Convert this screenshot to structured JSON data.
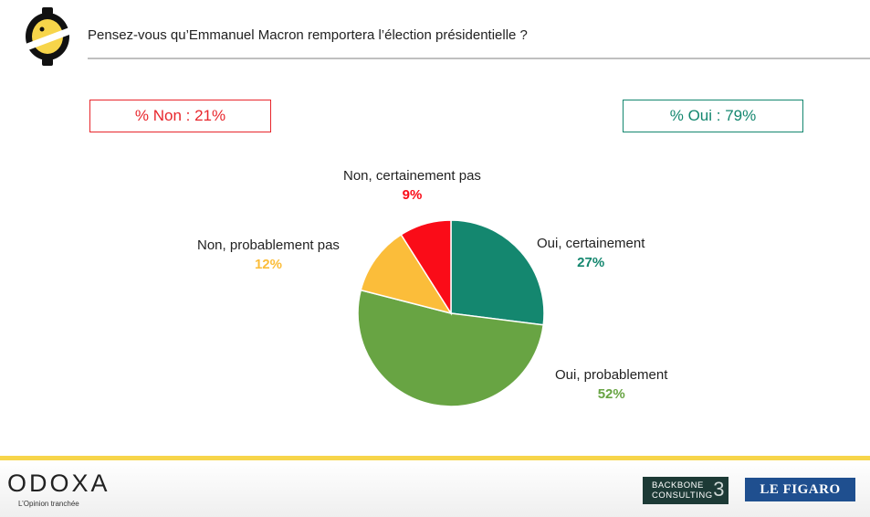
{
  "header": {
    "question": "Pensez-vous qu’Emmanuel Macron remportera l’élection présidentielle ?"
  },
  "totals": {
    "non": "% Non : 21%",
    "oui": "% Oui : 79%"
  },
  "chart_data": {
    "type": "pie",
    "title": "",
    "slices": [
      {
        "label": "Oui, certainement",
        "value": 27,
        "display": "27%",
        "color": "#14876f"
      },
      {
        "label": "Oui, probablement",
        "value": 52,
        "display": "52%",
        "color": "#68a443"
      },
      {
        "label": "Non, probablement pas",
        "value": 12,
        "display": "12%",
        "color": "#fbbd3a"
      },
      {
        "label": "Non, certainement pas",
        "value": 9,
        "display": "9%",
        "color": "#fa0c18"
      }
    ]
  },
  "footer": {
    "brand": "ODOXA",
    "tagline": "L’Opinion tranchée",
    "partner1_line1": "BACKBONE",
    "partner1_line2": "CONSULTING",
    "partner1_mark": "3",
    "partner2": "LE FIGARO"
  },
  "colors": {
    "non": "#e8262c",
    "oui": "#14876f",
    "accent": "#f7d54a"
  }
}
